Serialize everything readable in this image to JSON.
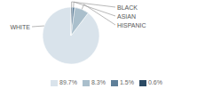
{
  "chart_data": {
    "type": "pie",
    "categories": [
      "WHITE",
      "HISPANIC",
      "ASIAN",
      "BLACK"
    ],
    "values": [
      89.7,
      8.3,
      1.5,
      0.6
    ],
    "colors": [
      "#d9e3eb",
      "#aabfcc",
      "#5e7f99",
      "#2b4a63"
    ],
    "value_labels": [
      "89.7%",
      "8.3%",
      "1.5%",
      "0.6%"
    ],
    "legend": "bottom"
  }
}
